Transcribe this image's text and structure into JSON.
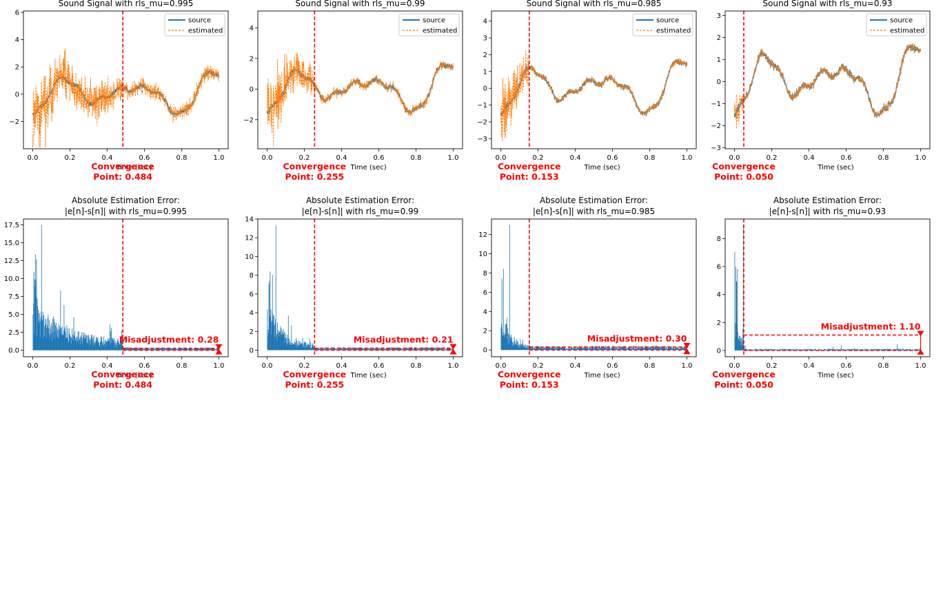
{
  "chart_data": [
    {
      "type": "line",
      "title": "Sound Signal with rls_mu=0.995",
      "xlabel": "Time (sec)",
      "ylabel": "",
      "xlim": [
        -0.05,
        1.05
      ],
      "ylim": [
        -4.0,
        6.1
      ],
      "xticks": [
        "0.0",
        "0.2",
        "0.4",
        "0.6",
        "0.8",
        "1.0"
      ],
      "yticks": [
        "−2",
        "0",
        "2",
        "4",
        "6"
      ],
      "legend": {
        "position": "top-right",
        "entries": [
          "source",
          "estimated"
        ]
      },
      "series": [
        {
          "name": "source",
          "color": "#1f77b4",
          "style": "solid"
        },
        {
          "name": "estimated",
          "color": "#ff7f0e",
          "style": "dashed"
        }
      ],
      "noise": {
        "early": 1.9,
        "late": 0.45,
        "spike": 4.5
      },
      "convergence": {
        "x": 0.484,
        "label1": "Convergence",
        "label2": "Point: 0.484"
      }
    },
    {
      "type": "line",
      "title": "Sound Signal with rls_mu=0.99",
      "xlabel": "Time (sec)",
      "ylabel": "",
      "xlim": [
        -0.05,
        1.05
      ],
      "ylim": [
        -3.9,
        5.1
      ],
      "xticks": [
        "0.0",
        "0.2",
        "0.4",
        "0.6",
        "0.8",
        "1.0"
      ],
      "yticks": [
        "−2",
        "0",
        "2",
        "4"
      ],
      "legend": {
        "position": "top-right",
        "entries": [
          "source",
          "estimated"
        ]
      },
      "series": [
        {
          "name": "source",
          "color": "#1f77b4",
          "style": "solid"
        },
        {
          "name": "estimated",
          "color": "#ff7f0e",
          "style": "dashed"
        }
      ],
      "noise": {
        "early": 1.6,
        "late": 0.2,
        "spike": 4.2
      },
      "convergence": {
        "x": 0.255,
        "label1": "Convergence",
        "label2": "Point: 0.255"
      }
    },
    {
      "type": "line",
      "title": "Sound Signal with rls_mu=0.985",
      "xlabel": "Time (sec)",
      "ylabel": "",
      "xlim": [
        -0.05,
        1.05
      ],
      "ylim": [
        -3.6,
        4.6
      ],
      "xticks": [
        "0.0",
        "0.2",
        "0.4",
        "0.6",
        "0.8",
        "1.0"
      ],
      "yticks": [
        "−3",
        "−2",
        "−1",
        "0",
        "1",
        "2",
        "3",
        "4"
      ],
      "legend": {
        "position": "top-right",
        "entries": [
          "source",
          "estimated"
        ]
      },
      "series": [
        {
          "name": "source",
          "color": "#1f77b4",
          "style": "solid"
        },
        {
          "name": "estimated",
          "color": "#ff7f0e",
          "style": "dashed"
        }
      ],
      "noise": {
        "early": 1.5,
        "late": 0.08,
        "spike": 3.6
      },
      "convergence": {
        "x": 0.153,
        "label1": "Convergence",
        "label2": "Point: 0.153"
      }
    },
    {
      "type": "line",
      "title": "Sound Signal with rls_mu=0.93",
      "xlabel": "Time (sec)",
      "ylabel": "",
      "xlim": [
        -0.05,
        1.05
      ],
      "ylim": [
        -3.05,
        3.2
      ],
      "xticks": [
        "0.0",
        "0.2",
        "0.4",
        "0.6",
        "0.8",
        "1.0"
      ],
      "yticks": [
        "−3",
        "−2",
        "−1",
        "0",
        "1",
        "2",
        "3"
      ],
      "legend": {
        "position": "top-right",
        "entries": [
          "source",
          "estimated"
        ]
      },
      "series": [
        {
          "name": "source",
          "color": "#1f77b4",
          "style": "solid"
        },
        {
          "name": "estimated",
          "color": "#ff7f0e",
          "style": "dashed"
        }
      ],
      "noise": {
        "early": 0.7,
        "late": 0.06,
        "spike": 2.5
      },
      "convergence": {
        "x": 0.05,
        "label1": "Convergence",
        "label2": "Point: 0.050"
      }
    },
    {
      "type": "bar",
      "title_line1": "Absolute Estimation Error:",
      "title_line2": "|e[n]-s[n]| with rls_mu=0.995",
      "xlabel": "Time (sec)",
      "ylabel": "",
      "xlim": [
        -0.05,
        1.05
      ],
      "ylim": [
        -0.9,
        18.3
      ],
      "xticks": [
        "0.0",
        "0.2",
        "0.4",
        "0.6",
        "0.8",
        "1.0"
      ],
      "yticks": [
        "0.0",
        "2.5",
        "5.0",
        "7.5",
        "10.0",
        "12.5",
        "15.0",
        "17.5"
      ],
      "color": "#1f77b4",
      "error_profile": {
        "peak": 17.5,
        "early": 7.0,
        "decay": 0.5,
        "late": 0.28
      },
      "convergence": {
        "x": 0.484,
        "label1": "Convergence",
        "label2": "Point: 0.484"
      },
      "misadjustment": {
        "value": 0.28,
        "label": "Misadjustment: 0.28"
      }
    },
    {
      "type": "bar",
      "title_line1": "Absolute Estimation Error:",
      "title_line2": "|e[n]-s[n]| with rls_mu=0.99",
      "xlabel": "Time (sec)",
      "ylabel": "",
      "xlim": [
        -0.05,
        1.05
      ],
      "ylim": [
        -0.7,
        14.0
      ],
      "xticks": [
        "0.0",
        "0.2",
        "0.4",
        "0.6",
        "0.8",
        "1.0"
      ],
      "yticks": [
        "0",
        "2",
        "4",
        "6",
        "8",
        "10",
        "12",
        "14"
      ],
      "color": "#1f77b4",
      "error_profile": {
        "peak": 13.3,
        "early": 5.0,
        "decay": 0.2,
        "late": 0.21
      },
      "convergence": {
        "x": 0.255,
        "label1": "Convergence",
        "label2": "Point: 0.255"
      },
      "misadjustment": {
        "value": 0.21,
        "label": "Misadjustment: 0.21"
      }
    },
    {
      "type": "bar",
      "title_line1": "Absolute Estimation Error:",
      "title_line2": "|e[n]-s[n]| with rls_mu=0.985",
      "xlabel": "Time (sec)",
      "ylabel": "",
      "xlim": [
        -0.05,
        1.05
      ],
      "ylim": [
        -0.7,
        13.6
      ],
      "xticks": [
        "0.0",
        "0.2",
        "0.4",
        "0.6",
        "0.8",
        "1.0"
      ],
      "yticks": [
        "0",
        "2",
        "4",
        "6",
        "8",
        "10",
        "12"
      ],
      "color": "#1f77b4",
      "error_profile": {
        "peak": 13.0,
        "early": 4.5,
        "decay": 0.1,
        "late": 0.3
      },
      "convergence": {
        "x": 0.153,
        "label1": "Convergence",
        "label2": "Point: 0.153"
      },
      "misadjustment": {
        "value": 0.3,
        "label": "Misadjustment: 0.30"
      }
    },
    {
      "type": "bar",
      "title_line1": "Absolute Estimation Error:",
      "title_line2": "|e[n]-s[n]| with rls_mu=0.93",
      "xlabel": "Time (sec)",
      "ylabel": "",
      "xlim": [
        -0.05,
        1.05
      ],
      "ylim": [
        -0.45,
        9.4
      ],
      "xticks": [
        "0.0",
        "0.2",
        "0.4",
        "0.6",
        "0.8",
        "1.0"
      ],
      "yticks": [
        "0",
        "2",
        "4",
        "6",
        "8"
      ],
      "color": "#1f77b4",
      "error_profile": {
        "peak": 9.0,
        "early": 3.0,
        "decay": 0.03,
        "late": 0.08
      },
      "convergence": {
        "x": 0.05,
        "label1": "Convergence",
        "label2": "Point: 0.050"
      },
      "misadjustment": {
        "value": 1.1,
        "label": "Misadjustment: 1.10"
      }
    }
  ]
}
